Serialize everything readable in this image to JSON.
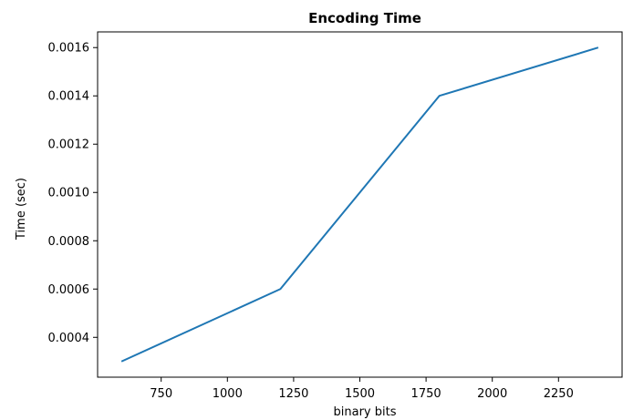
{
  "chart_data": {
    "type": "line",
    "title": "Encoding Time",
    "xlabel": "binary bits",
    "ylabel": "Time (sec)",
    "x": [
      600,
      1200,
      1800,
      2400
    ],
    "series": [
      {
        "values": [
          0.0003,
          0.0006,
          0.0014,
          0.0016
        ],
        "color": "#1f77b4"
      }
    ],
    "xlim": [
      510,
      2490
    ],
    "ylim": [
      0.000235,
      0.001665
    ],
    "xticks": [
      750,
      1000,
      1250,
      1500,
      1750,
      2000,
      2250
    ],
    "xtick_labels": [
      "750",
      "1000",
      "1250",
      "1500",
      "1750",
      "2000",
      "2250"
    ],
    "yticks": [
      0.0004,
      0.0006,
      0.0008,
      0.001,
      0.0012,
      0.0014,
      0.0016
    ],
    "ytick_labels": [
      "0.0004",
      "0.0006",
      "0.0008",
      "0.0010",
      "0.0012",
      "0.0014",
      "0.0016"
    ],
    "grid": false,
    "legend": "none"
  }
}
